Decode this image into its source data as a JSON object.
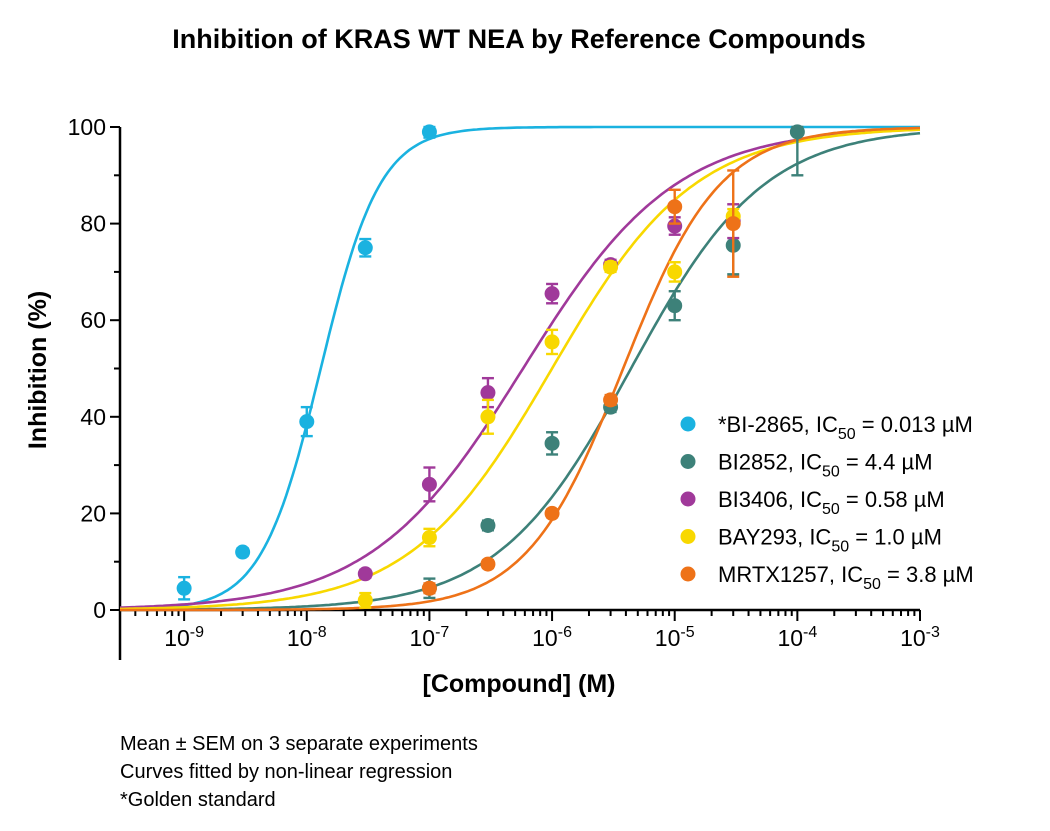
{
  "chart_data": {
    "type": "scatter",
    "title": "Inhibition of KRAS WT NEA by Reference Compounds",
    "xlabel": "[Compound] (M)",
    "ylabel": "Inhibition (%)",
    "x_scale": "log",
    "xlim": [
      3e-10,
      0.001
    ],
    "ylim": [
      0,
      100
    ],
    "y_ticks": [
      0,
      20,
      40,
      60,
      80,
      100
    ],
    "x_ticks": [
      {
        "value": 1e-09,
        "base": "10",
        "exp": "-9"
      },
      {
        "value": 1e-08,
        "base": "10",
        "exp": "-8"
      },
      {
        "value": 1e-07,
        "base": "10",
        "exp": "-7"
      },
      {
        "value": 1e-06,
        "base": "10",
        "exp": "-6"
      },
      {
        "value": 1e-05,
        "base": "10",
        "exp": "-5"
      },
      {
        "value": 0.0001,
        "base": "10",
        "exp": "-4"
      },
      {
        "value": 0.001,
        "base": "10",
        "exp": "-3"
      }
    ],
    "legend_position": "right",
    "grid": false,
    "series": [
      {
        "name": "*BI-2865, IC",
        "ic_label": "50",
        "ic_value": " = 0.013 µM",
        "color": "#1ab2e0",
        "ic50": 1.3e-08,
        "hill": 1.8,
        "points": [
          {
            "x": 1e-09,
            "y": 4.5,
            "err": 2.3
          },
          {
            "x": 3e-09,
            "y": 12,
            "err": 0.8
          },
          {
            "x": 1e-08,
            "y": 39,
            "err": 3
          },
          {
            "x": 3e-08,
            "y": 75,
            "err": 1.8
          },
          {
            "x": 1e-07,
            "y": 99,
            "err": 1.2
          }
        ]
      },
      {
        "name": "BI2852, IC",
        "ic_label": "50",
        "ic_value": " = 4.4 µM",
        "color": "#3d8179",
        "ic50": 4.4e-06,
        "hill": 0.8,
        "points": [
          {
            "x": 1e-07,
            "y": 4.5,
            "err": 2
          },
          {
            "x": 3e-07,
            "y": 17.5,
            "err": 1
          },
          {
            "x": 1e-06,
            "y": 34.5,
            "err": 2.3
          },
          {
            "x": 3e-06,
            "y": 42,
            "err": 1
          },
          {
            "x": 1e-05,
            "y": 63,
            "err": 3
          },
          {
            "x": 3e-05,
            "y": 75.5,
            "err": 6
          },
          {
            "x": 0.0001,
            "y": 99,
            "err": 9
          }
        ]
      },
      {
        "name": "BI3406, IC",
        "ic_label": "50",
        "ic_value": " = 0.58 µM",
        "color": "#a0399a",
        "ic50": 5.8e-07,
        "hill": 0.7,
        "points": [
          {
            "x": 3e-08,
            "y": 7.5,
            "err": 0.8
          },
          {
            "x": 1e-07,
            "y": 26,
            "err": 3.5
          },
          {
            "x": 3e-07,
            "y": 45,
            "err": 3
          },
          {
            "x": 1e-06,
            "y": 65.5,
            "err": 2
          },
          {
            "x": 3e-06,
            "y": 71.5,
            "err": 1
          },
          {
            "x": 1e-05,
            "y": 79.5,
            "err": 1.8
          },
          {
            "x": 3e-05,
            "y": 80.5,
            "err": 3.5
          }
        ]
      },
      {
        "name": "BAY293, IC",
        "ic_label": "50",
        "ic_value": " = 1.0 µM",
        "color": "#f8d800",
        "ic50": 1e-06,
        "hill": 0.75,
        "points": [
          {
            "x": 3e-08,
            "y": 2,
            "err": 1.5
          },
          {
            "x": 1e-07,
            "y": 15,
            "err": 1.8
          },
          {
            "x": 3e-07,
            "y": 40,
            "err": 3.5
          },
          {
            "x": 1e-06,
            "y": 55.5,
            "err": 2.5
          },
          {
            "x": 3e-06,
            "y": 71,
            "err": 1
          },
          {
            "x": 1e-05,
            "y": 70,
            "err": 2
          },
          {
            "x": 3e-05,
            "y": 81.5,
            "err": 1.5
          }
        ]
      },
      {
        "name": "MRTX1257, IC",
        "ic_label": "50",
        "ic_value": " = 3.8 µM",
        "color": "#ee7218",
        "ic50": 3.8e-06,
        "hill": 1.1,
        "points": [
          {
            "x": 1e-07,
            "y": 4.5,
            "err": 1
          },
          {
            "x": 3e-07,
            "y": 9.5,
            "err": 0.8
          },
          {
            "x": 1e-06,
            "y": 20,
            "err": 0.8
          },
          {
            "x": 3e-06,
            "y": 43.5,
            "err": 1
          },
          {
            "x": 1e-05,
            "y": 83.5,
            "err": 3.5
          },
          {
            "x": 3e-05,
            "y": 80,
            "err": 11
          }
        ]
      }
    ]
  },
  "notes": [
    "Mean ± SEM on 3 separate experiments",
    "Curves fitted by non-linear regression",
    "*Golden standard"
  ]
}
